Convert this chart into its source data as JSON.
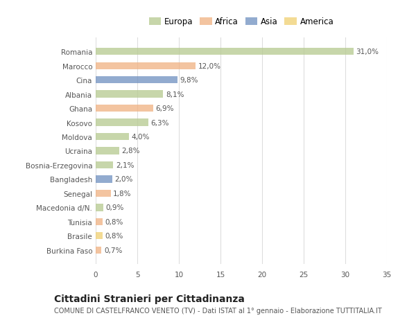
{
  "categories": [
    "Romania",
    "Marocco",
    "Cina",
    "Albania",
    "Ghana",
    "Kosovo",
    "Moldova",
    "Ucraina",
    "Bosnia-Erzegovina",
    "Bangladesh",
    "Senegal",
    "Macedonia d/N.",
    "Tunisia",
    "Brasile",
    "Burkina Faso"
  ],
  "values": [
    31.0,
    12.0,
    9.8,
    8.1,
    6.9,
    6.3,
    4.0,
    2.8,
    2.1,
    2.0,
    1.8,
    0.9,
    0.8,
    0.8,
    0.7
  ],
  "continents": [
    "Europa",
    "Africa",
    "Asia",
    "Europa",
    "Africa",
    "Europa",
    "Europa",
    "Europa",
    "Europa",
    "Asia",
    "Africa",
    "Europa",
    "Africa",
    "America",
    "Africa"
  ],
  "continent_colors": {
    "Europa": "#b5c98e",
    "Africa": "#f0b080",
    "Asia": "#6e8fbf",
    "America": "#f0cf70"
  },
  "legend_order": [
    "Europa",
    "Africa",
    "Asia",
    "America"
  ],
  "title": "Cittadini Stranieri per Cittadinanza",
  "subtitle": "COMUNE DI CASTELFRANCO VENETO (TV) - Dati ISTAT al 1° gennaio - Elaborazione TUTTITALIA.IT",
  "xlim": [
    0,
    35
  ],
  "xticks": [
    0,
    5,
    10,
    15,
    20,
    25,
    30,
    35
  ],
  "bg_color": "#ffffff",
  "grid_color": "#dddddd",
  "bar_height": 0.5,
  "label_fontsize": 7.5,
  "title_fontsize": 10,
  "subtitle_fontsize": 7,
  "tick_fontsize": 7.5,
  "legend_fontsize": 8.5
}
